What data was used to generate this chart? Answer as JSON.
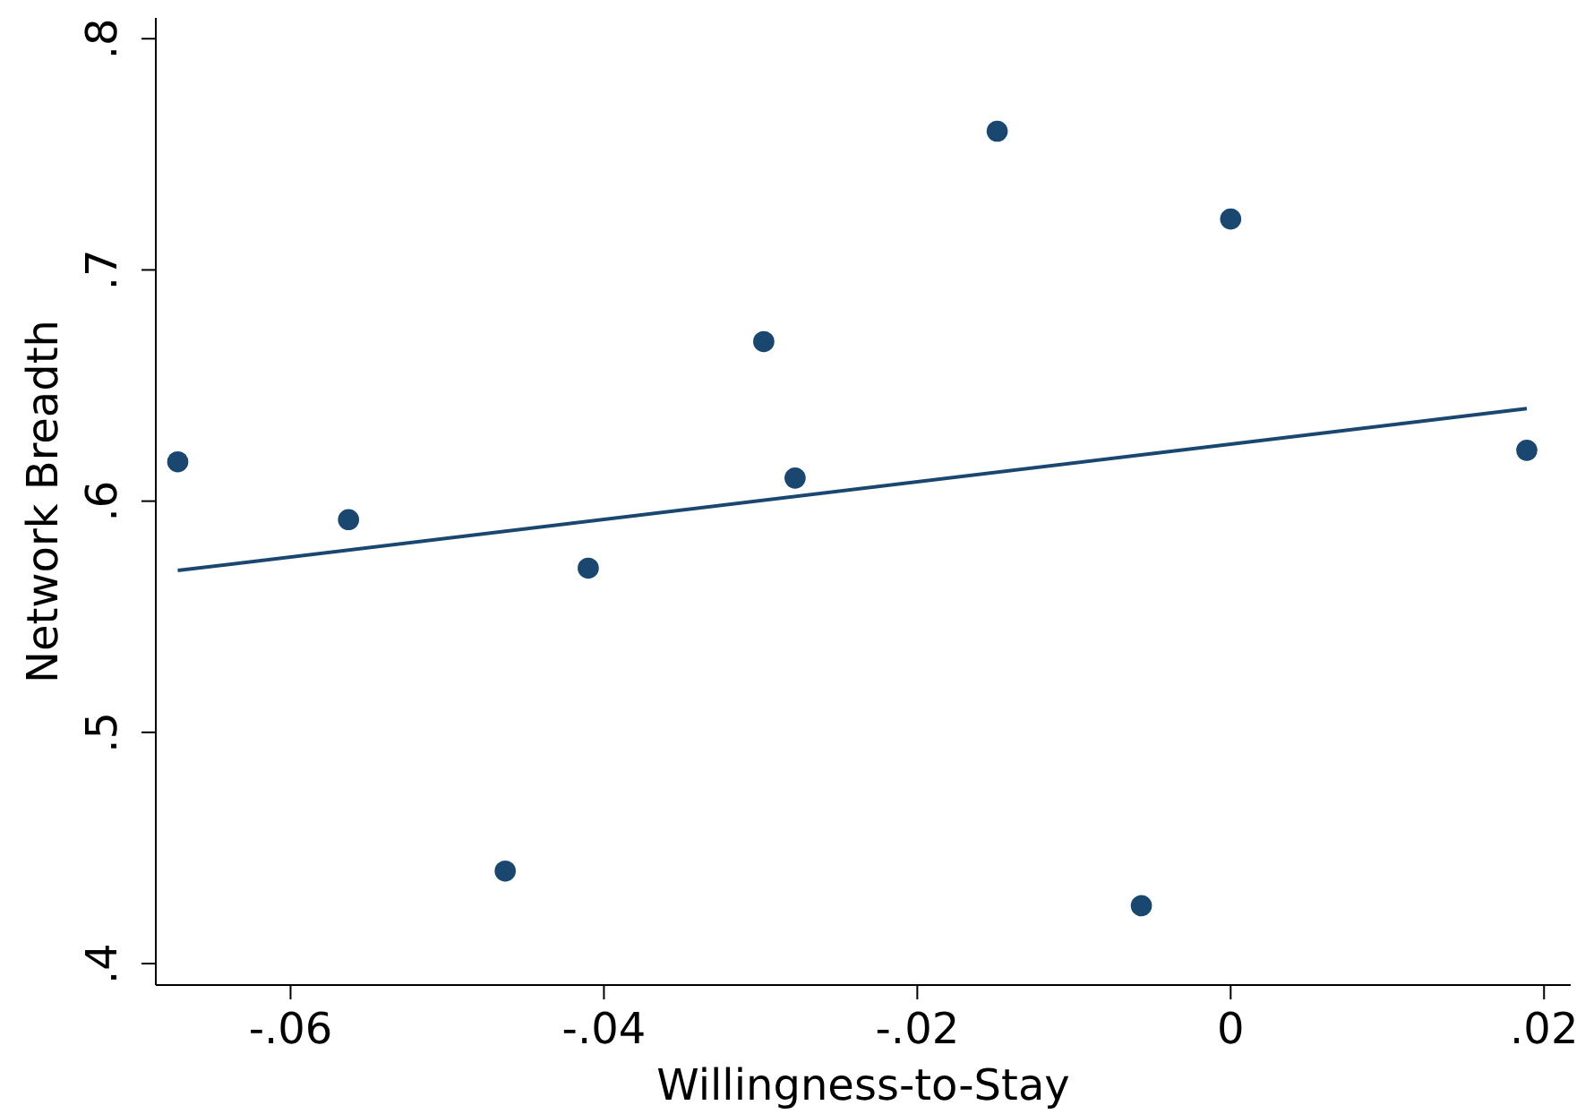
{
  "chart_data": {
    "type": "scatter",
    "xlabel": "Willingness-to-Stay",
    "ylabel": "Network Breadth",
    "xlim": [
      -0.0686,
      0.0217
    ],
    "ylim": [
      0.3907,
      0.809
    ],
    "xticks": [
      {
        "value": -0.06,
        "label": "-.06"
      },
      {
        "value": -0.04,
        "label": "-.04"
      },
      {
        "value": -0.02,
        "label": "-.02"
      },
      0,
      {
        "value": 0.02,
        "label": ".02"
      }
    ],
    "yticks": [
      {
        "value": 0.4,
        "label": ".4"
      },
      {
        "value": 0.5,
        "label": ".5"
      },
      {
        "value": 0.6,
        "label": ".6"
      },
      {
        "value": 0.7,
        "label": ".7"
      },
      {
        "value": 0.8,
        "label": ".8"
      }
    ],
    "grid": false,
    "series": [
      {
        "marker": "circle",
        "color": "#1a476f",
        "x": [
          -0.0672,
          -0.0563,
          -0.0463,
          -0.041,
          -0.0298,
          -0.0278,
          -0.0149,
          -0.0057,
          0,
          0.0189
        ],
        "values": [
          0.617,
          0.592,
          0.44,
          0.571,
          0.669,
          0.61,
          0.76,
          0.425,
          0.722,
          0.622
        ]
      },
      {
        "type": "line",
        "color": "#1a476f",
        "x": [
          -0.0672,
          0.0189
        ],
        "values": [
          0.57,
          0.64
        ]
      }
    ]
  }
}
